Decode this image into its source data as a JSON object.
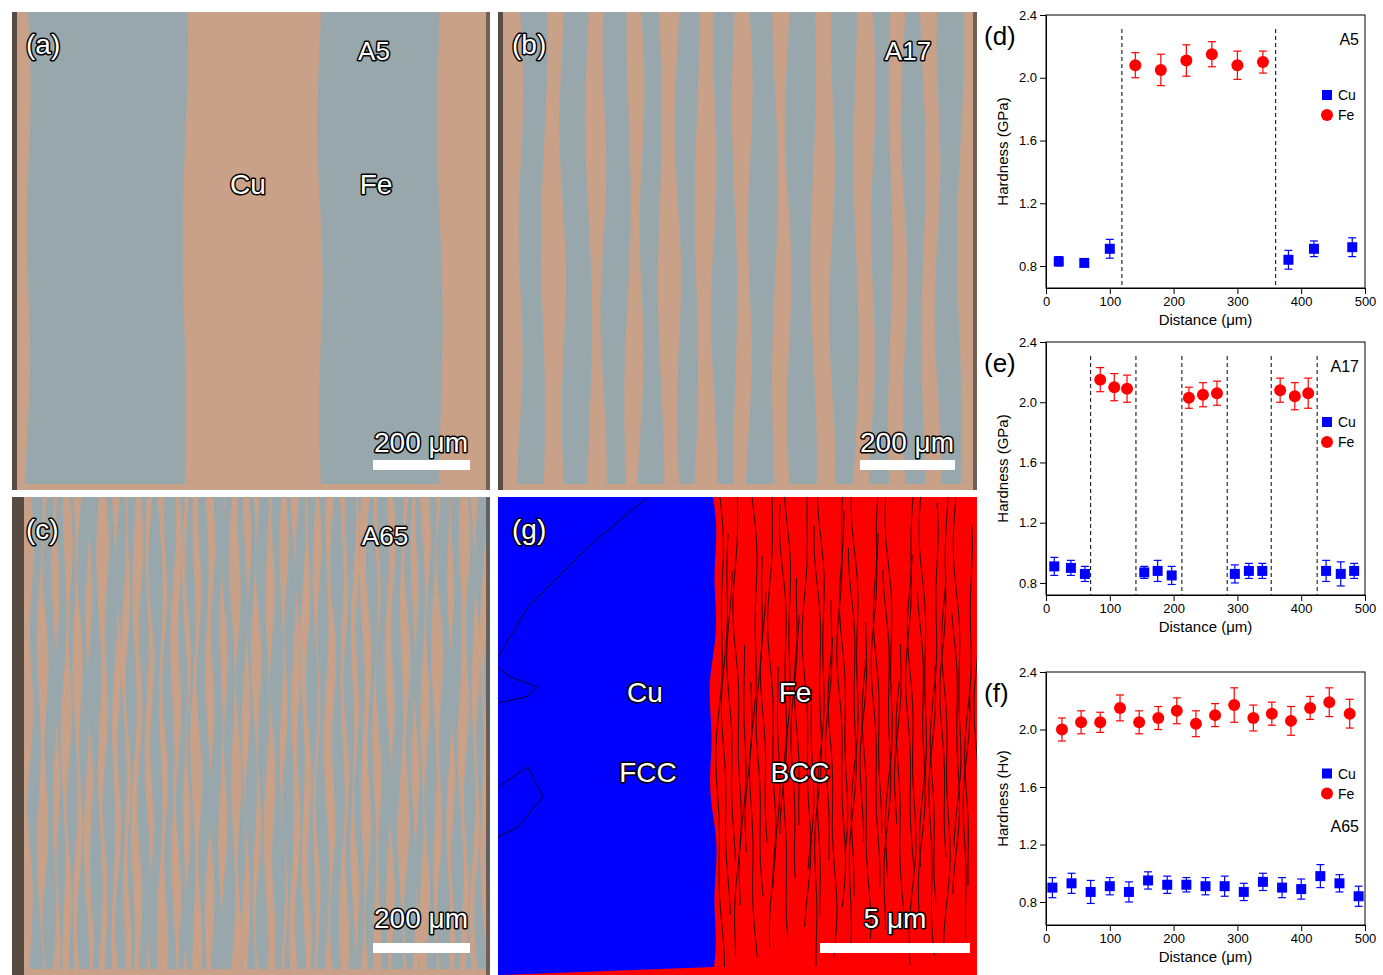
{
  "chart_data": [
    {
      "type": "scatter",
      "panel_label": "(d)",
      "annotation": "A5",
      "x_label": "Distance (μm)",
      "y_label": "Hardness (GPa)",
      "xlim": [
        0,
        500
      ],
      "xticks": [
        0,
        100,
        200,
        300,
        400,
        500
      ],
      "ylim": [
        0.66,
        2.4
      ],
      "yticks": [
        0.8,
        1.2,
        1.6,
        {
          "value": 2,
          "label": "2.0"
        },
        2.4
      ],
      "legend": "upper right",
      "boundaries": [
        119,
        360
      ],
      "series": [
        {
          "name": "Cu",
          "color": "#0000ff",
          "marker": "square",
          "x": [
            20,
            60,
            100,
            380,
            420,
            480
          ],
          "values": [
            0.83,
            0.82,
            0.91,
            0.84,
            0.91,
            0.92
          ],
          "errors": [
            0.03,
            0.02,
            0.06,
            0.06,
            0.05,
            0.06
          ]
        },
        {
          "name": "Fe",
          "color": "#ff0000",
          "marker": "circle",
          "x": [
            140,
            180,
            220,
            260,
            300,
            340
          ],
          "values": [
            2.08,
            2.05,
            2.11,
            2.15,
            2.08,
            2.1
          ],
          "errors": [
            0.08,
            0.1,
            0.1,
            0.08,
            0.09,
            0.07
          ]
        }
      ]
    },
    {
      "type": "scatter",
      "panel_label": "(e)",
      "annotation": "A17",
      "x_label": "Distance (μm)",
      "y_label": "Hardness (GPa)",
      "xlim": [
        0,
        500
      ],
      "xticks": [
        0,
        100,
        200,
        300,
        400,
        500
      ],
      "ylim": [
        0.72,
        2.4
      ],
      "yticks": [
        0.8,
        1.2,
        1.6,
        {
          "value": 2,
          "label": "2.0"
        },
        2.4
      ],
      "legend": "upper right",
      "boundaries": [
        70,
        141,
        213,
        284,
        353,
        425
      ],
      "series": [
        {
          "name": "Cu",
          "color": "#0000ff",
          "marker": "square",
          "x": [
            13,
            39,
            61,
            154,
            175,
            197,
            296,
            318,
            339,
            439,
            462,
            483
          ],
          "values": [
            0.91,
            0.9,
            0.86,
            0.87,
            0.88,
            0.85,
            0.86,
            0.88,
            0.88,
            0.88,
            0.86,
            0.88
          ],
          "errors": [
            0.06,
            0.05,
            0.05,
            0.04,
            0.07,
            0.06,
            0.06,
            0.05,
            0.05,
            0.07,
            0.08,
            0.05
          ]
        },
        {
          "name": "Fe",
          "color": "#ff0000",
          "marker": "circle",
          "x": [
            85,
            107,
            127,
            224,
            246,
            268,
            367,
            390,
            411
          ],
          "values": [
            2.15,
            2.1,
            2.09,
            2.03,
            2.05,
            2.06,
            2.08,
            2.04,
            2.06
          ],
          "errors": [
            0.08,
            0.09,
            0.09,
            0.07,
            0.08,
            0.08,
            0.08,
            0.09,
            0.1
          ]
        }
      ]
    },
    {
      "type": "scatter",
      "panel_label": "(f)",
      "annotation": "A65",
      "x_label": "Distance (μm)",
      "y_label": "Hardness (Hv)",
      "xlim": [
        0,
        500
      ],
      "xticks": [
        0,
        100,
        200,
        300,
        400,
        500
      ],
      "ylim": [
        0.64,
        2.4
      ],
      "yticks": [
        0.8,
        1.2,
        1.6,
        {
          "value": 2,
          "label": "2.0"
        },
        2.4
      ],
      "legend": "center right",
      "series": [
        {
          "name": "Cu",
          "color": "#0000ff",
          "marker": "square",
          "x": [
            10,
            40,
            70,
            100,
            130,
            160,
            190,
            220,
            250,
            280,
            310,
            340,
            370,
            400,
            430,
            460,
            490
          ],
          "values": [
            0.9,
            0.93,
            0.87,
            0.91,
            0.87,
            0.95,
            0.92,
            0.92,
            0.91,
            0.91,
            0.87,
            0.94,
            0.9,
            0.89,
            0.98,
            0.93,
            0.84
          ],
          "errors": [
            0.07,
            0.07,
            0.08,
            0.06,
            0.07,
            0.06,
            0.06,
            0.05,
            0.06,
            0.07,
            0.06,
            0.06,
            0.07,
            0.07,
            0.08,
            0.06,
            0.07
          ]
        },
        {
          "name": "Fe",
          "color": "#ff0000",
          "marker": "circle",
          "x": [
            25,
            55,
            85,
            116,
            146,
            176,
            205,
            235,
            265,
            295,
            325,
            354,
            384,
            414,
            444,
            476
          ],
          "values": [
            2.0,
            2.05,
            2.05,
            2.15,
            2.05,
            2.08,
            2.13,
            2.04,
            2.1,
            2.17,
            2.08,
            2.11,
            2.06,
            2.15,
            2.19,
            2.11
          ],
          "errors": [
            0.08,
            0.08,
            0.07,
            0.09,
            0.08,
            0.08,
            0.09,
            0.09,
            0.08,
            0.12,
            0.09,
            0.08,
            0.1,
            0.08,
            0.1,
            0.1
          ]
        }
      ]
    }
  ],
  "images": [
    {
      "panel_label": "(a)",
      "sample": "A5",
      "phases": [
        "Cu",
        "Fe"
      ],
      "scale_bar": "200 μm"
    },
    {
      "panel_label": "(b)",
      "sample": "A17",
      "scale_bar": "200 μm"
    },
    {
      "panel_label": "(c)",
      "sample": "A65",
      "scale_bar": "200 μm"
    },
    {
      "panel_label": "(g)",
      "phases": [
        "Cu",
        "Fe"
      ],
      "structures": [
        "FCC",
        "BCC"
      ],
      "scale_bar": "5 μm"
    }
  ]
}
